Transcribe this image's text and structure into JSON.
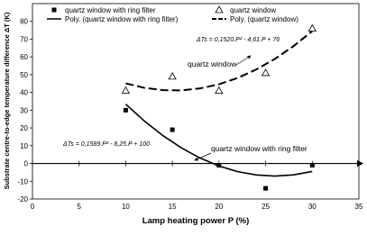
{
  "chart_data": {
    "type": "scatter",
    "xlabel": "Lamp heating power P (%)",
    "ylabel": "Substrate centre-to-edge temperature difference ΔT (K)",
    "xlim": [
      0,
      35
    ],
    "xticks": [
      0,
      5,
      10,
      15,
      20,
      25,
      30,
      35
    ],
    "ylim": [
      -20,
      90
    ],
    "yticks": [
      -20,
      -10,
      0,
      10,
      20,
      30,
      40,
      50,
      60,
      70,
      80
    ],
    "series": [
      {
        "name": "quartz window with ring filter",
        "type": "scatter",
        "marker": "square",
        "color": "#000000",
        "x": [
          10,
          15,
          20,
          25,
          30
        ],
        "values": [
          30,
          19,
          -1,
          -14,
          -1
        ]
      },
      {
        "name": "quartz window",
        "type": "scatter",
        "marker": "triangle",
        "color": "#000000",
        "x": [
          10,
          15,
          20,
          25,
          30
        ],
        "values": [
          41,
          49,
          41,
          51,
          76
        ]
      },
      {
        "name": "Poly. (quartz window with ring filter)",
        "type": "line",
        "dash": false,
        "color": "#000000",
        "x": [
          10,
          12,
          14,
          16,
          18,
          20,
          22,
          24,
          26,
          28,
          30
        ],
        "values": [
          33.39,
          23.88,
          15.64,
          8.68,
          2.98,
          -1.44,
          -4.59,
          -6.47,
          -7.08,
          -6.42,
          -4.49
        ]
      },
      {
        "name": "Poly. (quartz window)",
        "type": "line",
        "dash": true,
        "color": "#000000",
        "x": [
          10,
          12,
          14,
          16,
          18,
          20,
          22,
          24,
          26,
          28,
          30
        ],
        "values": [
          45.1,
          42.57,
          41.25,
          41.15,
          42.27,
          44.6,
          48.15,
          52.91,
          58.89,
          66.09,
          74.5
        ]
      }
    ],
    "annotations": [
      "ΔTs = 0,1520.P² - 4,61.P + 76",
      "quartz window",
      "ΔTs = 0,1589.P² - 8,25.P + 100",
      "quartz window with ring filter"
    ]
  }
}
